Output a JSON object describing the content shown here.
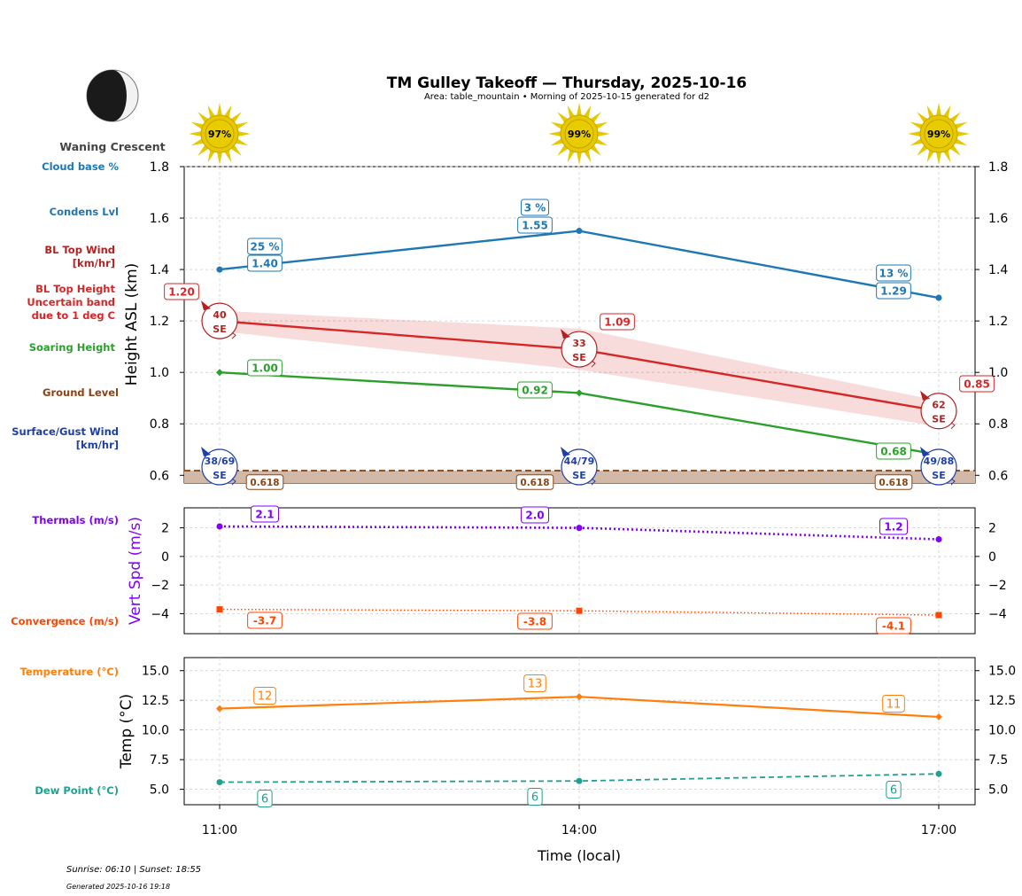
{
  "header": {
    "title": "TM Gulley Takeoff — Thursday, 2025-10-16",
    "subtitle": "Area: table_mountain • Morning of 2025-10-15 generated for d2",
    "moon_phase": "Waning Crescent"
  },
  "footer": {
    "sun_times": "Sunrise: 06:10 | Sunset: 18:55",
    "generated": "Generated 2025-10-16 19:18"
  },
  "legend": {
    "cloud_base": "Cloud base %",
    "condens": "Condens Lvl",
    "bl_wind_1": "BL Top Wind",
    "bl_wind_2": "[km/hr]",
    "bl_height_1": "BL Top Height",
    "bl_height_2": "Uncertain band",
    "bl_height_3": "due to 1 deg C",
    "soaring": "Soaring Height",
    "ground": "Ground Level",
    "surface_1": "Surface/Gust Wind",
    "surface_2": "[km/hr]",
    "thermals": "Thermals (m/s)",
    "convergence": "Convergence (m/s)",
    "temperature": "Temperature (°C)",
    "dewpoint": "Dew Point (°C)"
  },
  "colors": {
    "condens": "#1f77b4",
    "bl_top": "#d62728",
    "bl_wind": "#b22222",
    "soaring": "#2ca02c",
    "ground": "#8b4513",
    "surface": "#1f3fa8",
    "thermals": "#7f00ff",
    "convergence": "#ff4500",
    "temperature": "#ff7f0e",
    "dewpoint": "#20a090",
    "sun": "#e6c800"
  },
  "chart_data": {
    "type": "line",
    "x": [
      "11:00",
      "14:00",
      "17:00"
    ],
    "xlabel": "Time (local)",
    "sun": [
      "97%",
      "99%",
      "99%"
    ],
    "panels": [
      {
        "name": "height",
        "ylabel": "Height ASL (km)",
        "ylim": [
          0.57,
          1.8
        ],
        "yticks": [
          0.6,
          0.8,
          1.0,
          1.2,
          1.4,
          1.6,
          1.8
        ],
        "tick_format": "1",
        "series": [
          {
            "name": "Condens Lvl",
            "values": [
              1.4,
              1.55,
              1.29
            ],
            "labels": [
              "1.40",
              "1.55",
              "1.29"
            ]
          },
          {
            "name": "Cloud base %",
            "values": [
              25,
              3,
              13
            ],
            "labels": [
              "25 %",
              "3 %",
              "13 %"
            ]
          },
          {
            "name": "BL Top Height",
            "values": [
              1.2,
              1.09,
              0.85
            ],
            "labels": [
              "1.20",
              "1.09",
              "0.85"
            ],
            "band_low": [
              1.16,
              1.01,
              0.79
            ],
            "band_high": [
              1.24,
              1.17,
              0.89
            ]
          },
          {
            "name": "Soaring Height",
            "values": [
              1.0,
              0.92,
              0.68
            ],
            "labels": [
              "1.00",
              "0.92",
              "0.68"
            ]
          },
          {
            "name": "Ground Level",
            "values": [
              0.618,
              0.618,
              0.618
            ],
            "labels": [
              "0.618",
              "0.618",
              "0.618"
            ]
          }
        ],
        "bl_wind": [
          {
            "speed": "40",
            "dir": "SE"
          },
          {
            "speed": "33",
            "dir": "SE"
          },
          {
            "speed": "62",
            "dir": "SE"
          }
        ],
        "surface_wind": [
          {
            "speed": "38/69",
            "dir": "SE"
          },
          {
            "speed": "44/79",
            "dir": "SE"
          },
          {
            "speed": "49/88",
            "dir": "SE"
          }
        ]
      },
      {
        "name": "vertical",
        "ylabel": "Vert Spd (m/s)",
        "ylim": [
          -5.4,
          3.4
        ],
        "yticks": [
          -4,
          -2,
          0,
          2
        ],
        "tick_format": "0",
        "series": [
          {
            "name": "Thermals (m/s)",
            "values": [
              2.1,
              2.0,
              1.2
            ],
            "labels": [
              "2.1",
              "2.0",
              "1.2"
            ]
          },
          {
            "name": "Convergence (m/s)",
            "values": [
              -3.7,
              -3.8,
              -4.1
            ],
            "labels": [
              "-3.7",
              "-3.8",
              "-4.1"
            ]
          }
        ]
      },
      {
        "name": "temperature",
        "ylabel": "Temp (°C)",
        "ylim": [
          3.7,
          16.1
        ],
        "yticks": [
          5.0,
          7.5,
          10.0,
          12.5,
          15.0
        ],
        "tick_format": "1",
        "series": [
          {
            "name": "Temperature (°C)",
            "values": [
              11.8,
              12.8,
              11.1
            ],
            "labels": [
              "12",
              "13",
              "11"
            ]
          },
          {
            "name": "Dew Point (°C)",
            "values": [
              5.6,
              5.7,
              6.3
            ],
            "labels": [
              "6",
              "6",
              "6"
            ]
          }
        ]
      }
    ]
  }
}
